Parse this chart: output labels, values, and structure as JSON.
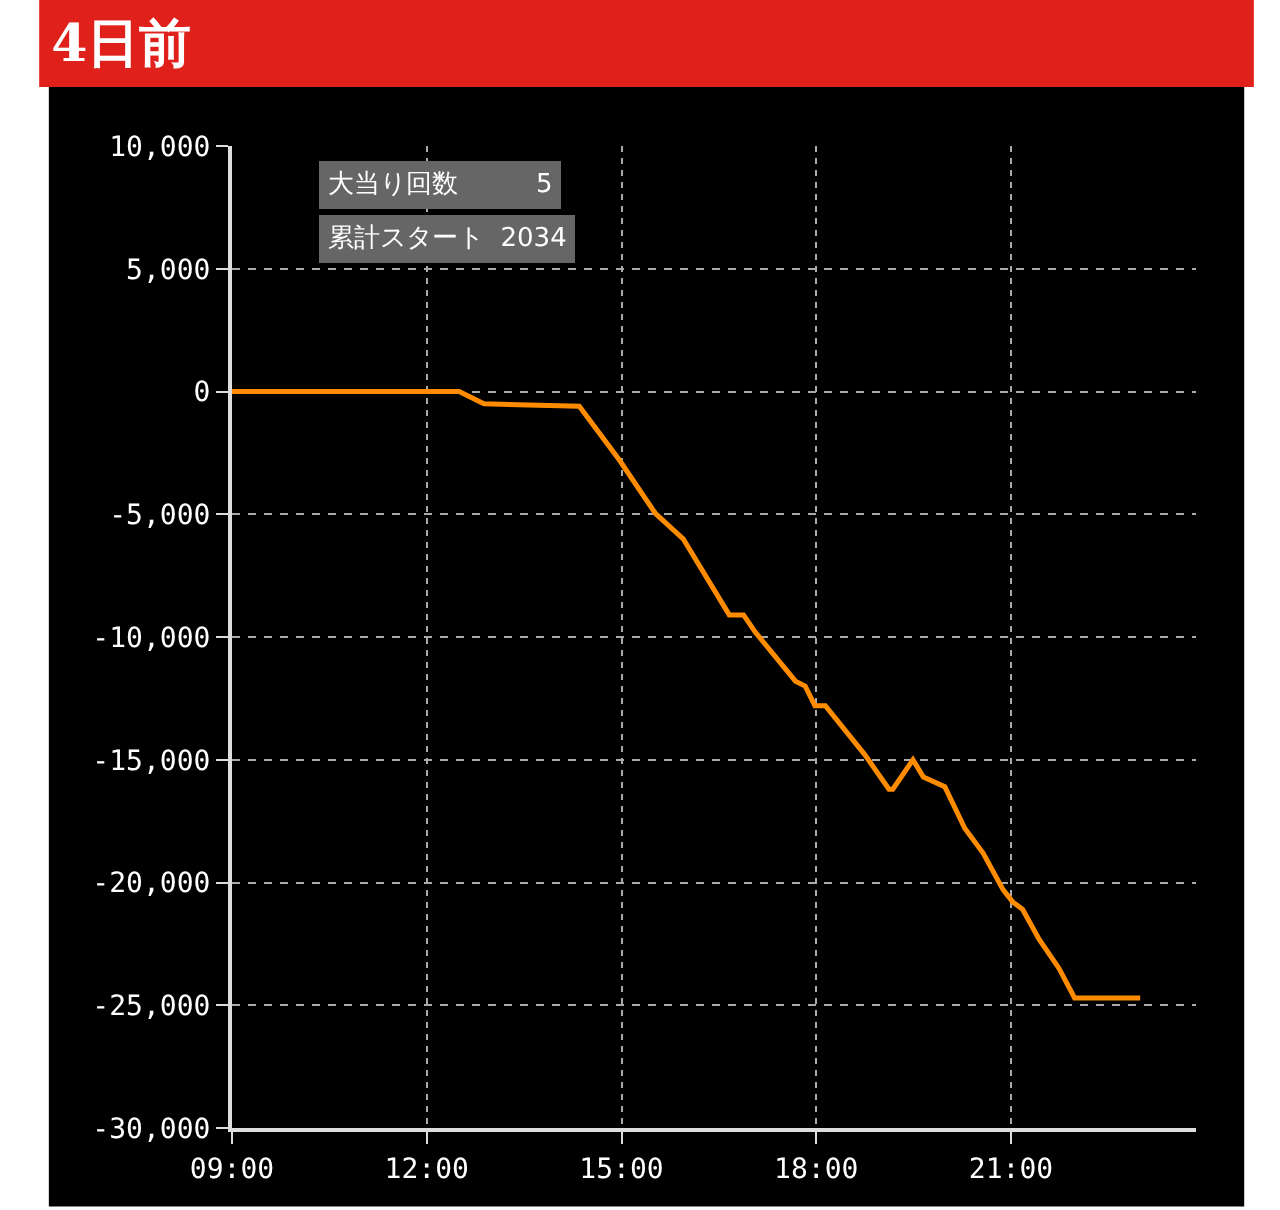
{
  "chart_data": {
    "type": "line",
    "title": "4日前",
    "annotations": [
      "大当り回数　　　5",
      "累計スタート  2034"
    ],
    "x": [
      9.0,
      12.5,
      12.88,
      14.35,
      14.97,
      15.52,
      15.95,
      16.66,
      16.88,
      17.06,
      17.68,
      17.83,
      17.98,
      18.14,
      18.75,
      19.12,
      19.18,
      19.49,
      19.65,
      19.98,
      20.29,
      20.57,
      20.88,
      21.03,
      21.18,
      21.43,
      21.74,
      21.98,
      22.99
    ],
    "series": [
      {
        "color": "#ff8c00",
        "values": [
          0,
          0,
          -500,
          -600,
          -2800,
          -4960,
          -6000,
          -9100,
          -9100,
          -9800,
          -11800,
          -12000,
          -12800,
          -12800,
          -14800,
          -16200,
          -16200,
          -15000,
          -15700,
          -16100,
          -17800,
          -18800,
          -20300,
          -20800,
          -21100,
          -22300,
          -23500,
          -24700,
          -24700
        ]
      }
    ],
    "xlim": [
      9,
      23.85
    ],
    "ylim": [
      -30000,
      10000
    ],
    "xticks": [
      {
        "value": 9,
        "label": "09:00"
      },
      {
        "value": 12,
        "label": "12:00"
      },
      {
        "value": 15,
        "label": "15:00"
      },
      {
        "value": 18,
        "label": "18:00"
      },
      {
        "value": 21,
        "label": "21:00"
      }
    ],
    "yticks": [
      {
        "value": -30000,
        "label": "-30,000"
      },
      {
        "value": -25000,
        "label": "-25,000"
      },
      {
        "value": -20000,
        "label": "-20,000"
      },
      {
        "value": -15000,
        "label": "-15,000"
      },
      {
        "value": -10000,
        "label": "-10,000"
      },
      {
        "value": -5000,
        "label": "-5,000"
      },
      {
        "value": 0,
        "label": "0"
      },
      {
        "value": 5000,
        "label": "5,000"
      },
      {
        "value": 10000,
        "label": "10,000"
      }
    ],
    "grid": true,
    "marker": "none",
    "line_style": "solid"
  }
}
